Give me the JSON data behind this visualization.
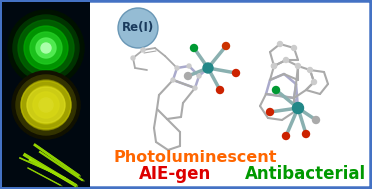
{
  "left_panel_bg": "#000810",
  "right_panel_bg": "#ffffff",
  "border_color": "#4472c4",
  "rei_label": "Re(I)",
  "rei_bg": "#7aabcc",
  "rei_text_color": "#1a3a5c",
  "label1": "Photoluminescent",
  "label1_color": "#ff6600",
  "label2": "AIE-gen",
  "label2_color": "#dd0000",
  "label3": "Antibacterial",
  "label3_color": "#009900",
  "fig_width": 3.72,
  "fig_height": 1.89
}
